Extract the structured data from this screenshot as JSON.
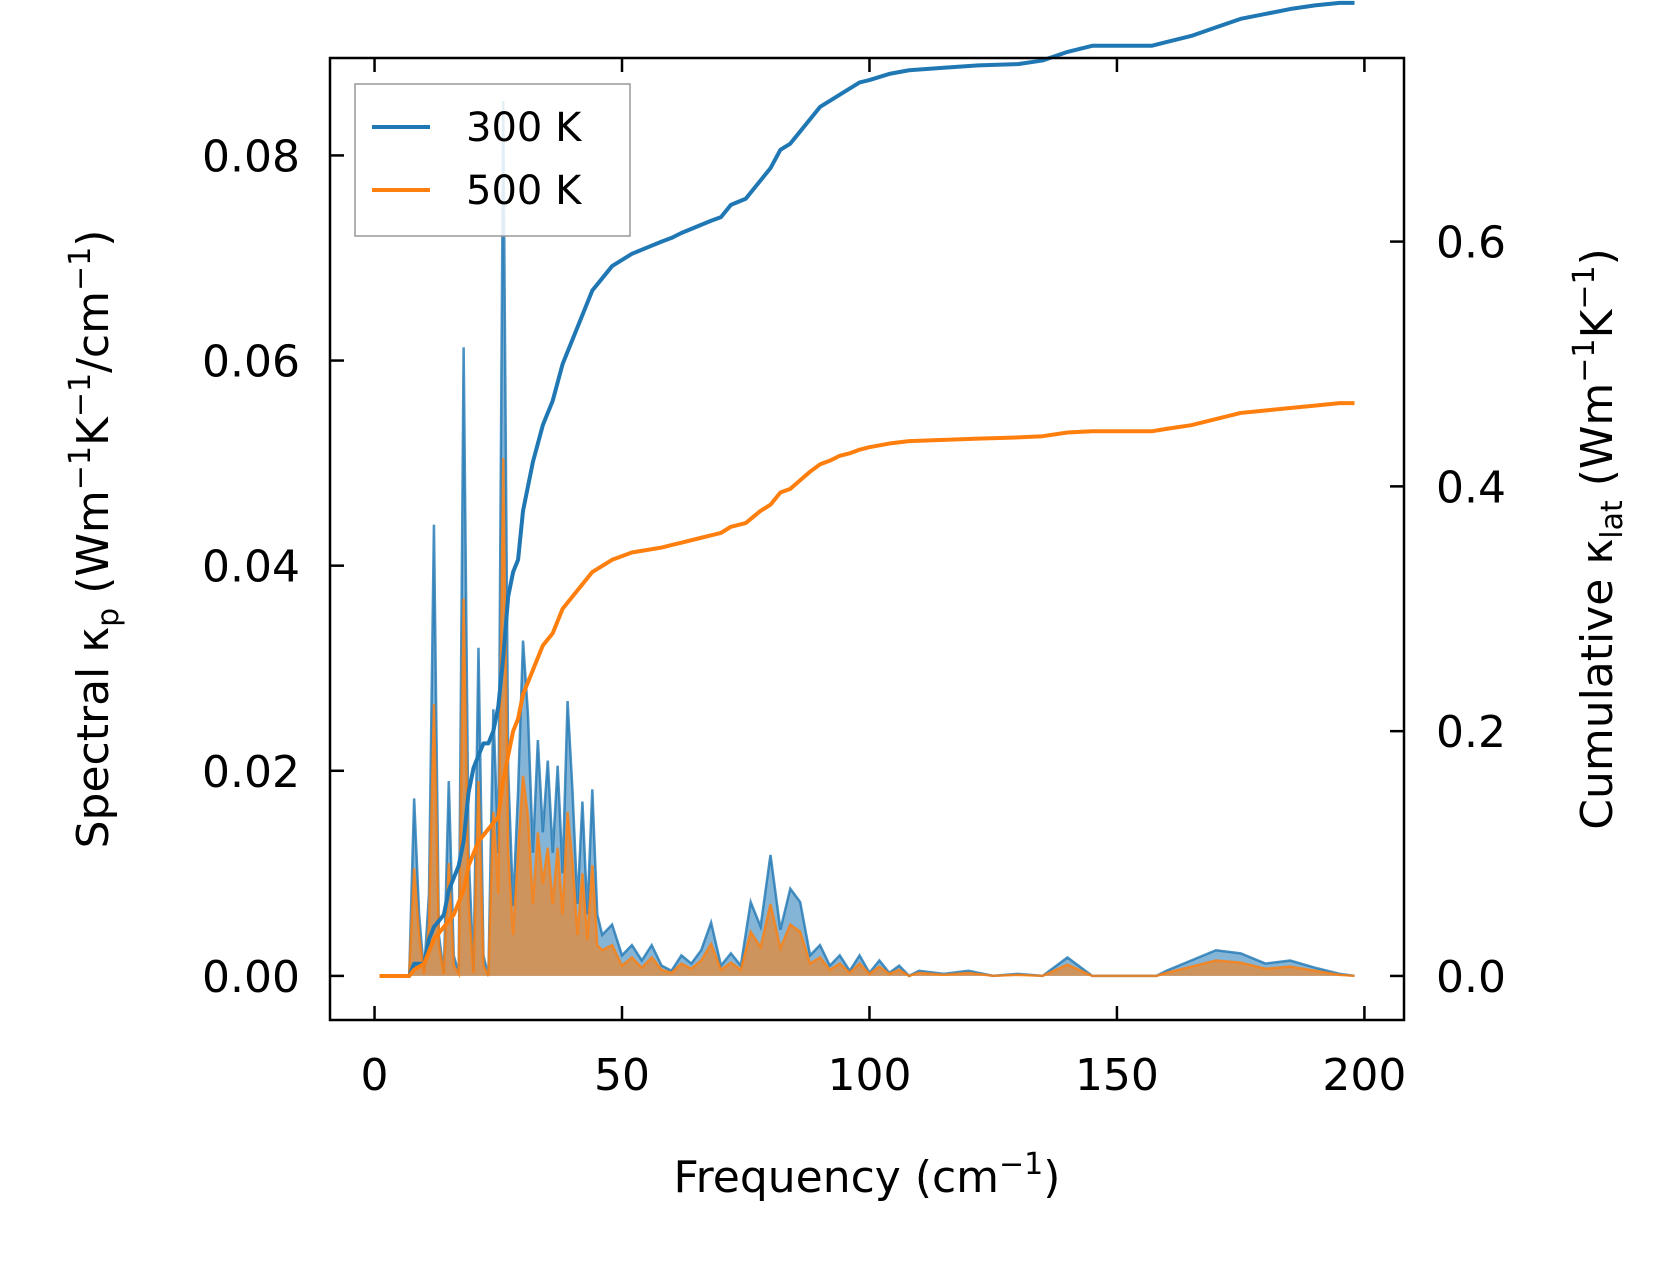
{
  "chart_data": {
    "type": "line",
    "title": "",
    "xlabel": {
      "text": "Frequency (cm",
      "sup": "−1",
      "tail": ")"
    },
    "ylabel_left": {
      "base": "Spectral κ",
      "sub": "p",
      "mid": " (Wm",
      "sup1": "−1",
      "k": "K",
      "sup2": "−1",
      "slash": "/cm",
      "sup3": "−1",
      "tail": ")"
    },
    "ylabel_right": {
      "base": "Cumulative κ",
      "sub": "lat",
      "mid": " (Wm",
      "sup1": "−1",
      "k": "K",
      "sup2": "−1",
      "tail": ")"
    },
    "xlim": [
      -9,
      208
    ],
    "ylim_left": [
      -0.0043,
      0.0895
    ],
    "ylim_right": [
      -0.036,
      0.75
    ],
    "xticks": [
      0,
      50,
      100,
      150,
      200
    ],
    "xtick_labels": [
      "0",
      "50",
      "100",
      "150",
      "200"
    ],
    "yticks_left": [
      0.0,
      0.02,
      0.04,
      0.06,
      0.08
    ],
    "ytick_labels_left": [
      "0.00",
      "0.02",
      "0.04",
      "0.06",
      "0.08"
    ],
    "yticks_right": [
      0.0,
      0.2,
      0.4,
      0.6
    ],
    "ytick_labels_right": [
      "0.0",
      "0.2",
      "0.4",
      "0.6"
    ],
    "grid": false,
    "legend_position": "top-left",
    "series": [
      {
        "name": "300 K",
        "color": "#1f77b4",
        "axis": "right",
        "kind": "cumulative",
        "x": [
          1,
          6,
          7,
          8,
          10,
          11,
          12,
          14,
          15,
          16,
          17,
          18,
          19,
          20,
          21,
          22,
          23,
          24,
          25,
          26,
          27,
          28,
          29,
          30,
          32,
          34,
          36,
          38,
          40,
          41,
          42,
          43,
          44,
          46,
          48,
          50,
          52,
          55,
          58,
          60,
          62,
          65,
          68,
          70,
          72,
          75,
          78,
          80,
          82,
          84,
          86,
          88,
          90,
          92,
          94,
          96,
          98,
          100,
          104,
          108,
          115,
          122,
          130,
          135,
          140,
          145,
          150,
          157,
          160,
          165,
          170,
          175,
          180,
          185,
          190,
          195,
          198
        ],
        "y": [
          0.0,
          0.0,
          0.0,
          0.01,
          0.01,
          0.03,
          0.04,
          0.05,
          0.07,
          0.08,
          0.09,
          0.11,
          0.15,
          0.17,
          0.18,
          0.19,
          0.19,
          0.2,
          0.22,
          0.26,
          0.31,
          0.33,
          0.34,
          0.38,
          0.42,
          0.45,
          0.47,
          0.5,
          0.52,
          0.53,
          0.54,
          0.55,
          0.56,
          0.57,
          0.58,
          0.585,
          0.59,
          0.595,
          0.6,
          0.603,
          0.607,
          0.612,
          0.617,
          0.62,
          0.63,
          0.635,
          0.65,
          0.66,
          0.675,
          0.68,
          0.69,
          0.7,
          0.71,
          0.715,
          0.72,
          0.725,
          0.73,
          0.732,
          0.737,
          0.74,
          0.742,
          0.744,
          0.745,
          0.748,
          0.755,
          0.76,
          0.76,
          0.76,
          0.763,
          0.768,
          0.775,
          0.782,
          0.786,
          0.79,
          0.793,
          0.795,
          0.795
        ]
      },
      {
        "name": "500 K",
        "color": "#ff7f0e",
        "axis": "right",
        "kind": "cumulative",
        "x": [
          1,
          6,
          7,
          8,
          10,
          11,
          12,
          14,
          15,
          16,
          17,
          18,
          19,
          20,
          21,
          22,
          23,
          24,
          25,
          26,
          27,
          28,
          29,
          30,
          32,
          34,
          36,
          38,
          40,
          41,
          42,
          43,
          44,
          46,
          48,
          50,
          52,
          55,
          58,
          60,
          62,
          65,
          68,
          70,
          72,
          75,
          78,
          80,
          82,
          84,
          86,
          88,
          90,
          92,
          94,
          96,
          98,
          100,
          104,
          108,
          115,
          122,
          130,
          135,
          140,
          145,
          150,
          157,
          160,
          165,
          170,
          175,
          180,
          185,
          190,
          195,
          198
        ],
        "y": [
          0.0,
          0.0,
          0.0,
          0.005,
          0.01,
          0.02,
          0.03,
          0.04,
          0.045,
          0.05,
          0.06,
          0.07,
          0.09,
          0.1,
          0.11,
          0.115,
          0.12,
          0.125,
          0.13,
          0.16,
          0.18,
          0.2,
          0.21,
          0.23,
          0.25,
          0.27,
          0.28,
          0.3,
          0.31,
          0.315,
          0.32,
          0.325,
          0.33,
          0.335,
          0.34,
          0.343,
          0.346,
          0.348,
          0.35,
          0.352,
          0.354,
          0.357,
          0.36,
          0.362,
          0.367,
          0.37,
          0.38,
          0.385,
          0.395,
          0.398,
          0.405,
          0.412,
          0.418,
          0.421,
          0.425,
          0.427,
          0.43,
          0.432,
          0.435,
          0.437,
          0.438,
          0.439,
          0.44,
          0.441,
          0.444,
          0.445,
          0.445,
          0.445,
          0.447,
          0.45,
          0.455,
          0.46,
          0.462,
          0.464,
          0.466,
          0.468,
          0.468
        ]
      },
      {
        "name": "",
        "color": "#1f77b4",
        "axis": "left",
        "kind": "spectral",
        "x": [
          1,
          5,
          6,
          7,
          8,
          9,
          10,
          11,
          12,
          13,
          14,
          15,
          16,
          17,
          18,
          19,
          20,
          21,
          22,
          23,
          24,
          25,
          26,
          27,
          28,
          29,
          30,
          31,
          32,
          33,
          34,
          35,
          36,
          37,
          38,
          39,
          40,
          41,
          42,
          43,
          44,
          45,
          46,
          48,
          50,
          52,
          54,
          56,
          58,
          60,
          62,
          64,
          66,
          68,
          70,
          72,
          74,
          76,
          78,
          80,
          82,
          84,
          86,
          88,
          90,
          92,
          94,
          96,
          98,
          100,
          102,
          104,
          106,
          108,
          110,
          115,
          120,
          125,
          130,
          135,
          140,
          145,
          150,
          155,
          158,
          160,
          165,
          170,
          175,
          180,
          185,
          190,
          195,
          198
        ],
        "y": [
          0.0,
          0.0,
          0.0,
          0.0,
          0.0173,
          0.006,
          0.0003,
          0.008,
          0.044,
          0.004,
          0.0003,
          0.019,
          0.002,
          0.0003,
          0.0613,
          0.012,
          0.0005,
          0.032,
          0.002,
          0.0,
          0.026,
          0.012,
          0.0853,
          0.02,
          0.0068,
          0.018,
          0.0327,
          0.0255,
          0.012,
          0.023,
          0.014,
          0.021,
          0.012,
          0.0205,
          0.01,
          0.0268,
          0.018,
          0.007,
          0.017,
          0.006,
          0.0182,
          0.006,
          0.004,
          0.005,
          0.002,
          0.003,
          0.0015,
          0.003,
          0.001,
          0.0005,
          0.002,
          0.0012,
          0.0025,
          0.0052,
          0.001,
          0.0022,
          0.001,
          0.0072,
          0.0048,
          0.0118,
          0.0045,
          0.0085,
          0.0072,
          0.002,
          0.003,
          0.001,
          0.002,
          0.0005,
          0.002,
          0.0003,
          0.0015,
          0.0003,
          0.001,
          0.0,
          0.0005,
          0.0002,
          0.0005,
          0.0,
          0.0002,
          0.0,
          0.0018,
          0.0,
          0.0,
          0.0,
          0.0,
          0.0005,
          0.0015,
          0.0025,
          0.0022,
          0.0012,
          0.0015,
          0.0008,
          0.0002,
          0.0
        ]
      },
      {
        "name": "",
        "color": "#ff7f0e",
        "axis": "left",
        "kind": "spectral",
        "x": [
          1,
          5,
          6,
          7,
          8,
          9,
          10,
          11,
          12,
          13,
          14,
          15,
          16,
          17,
          18,
          19,
          20,
          21,
          22,
          23,
          24,
          25,
          26,
          27,
          28,
          29,
          30,
          31,
          32,
          33,
          34,
          35,
          36,
          37,
          38,
          39,
          40,
          41,
          42,
          43,
          44,
          45,
          46,
          48,
          50,
          52,
          54,
          56,
          58,
          60,
          62,
          64,
          66,
          68,
          70,
          72,
          74,
          76,
          78,
          80,
          82,
          84,
          86,
          88,
          90,
          92,
          94,
          96,
          98,
          100,
          102,
          104,
          106,
          108,
          110,
          115,
          120,
          125,
          130,
          135,
          140,
          145,
          150,
          155,
          158,
          160,
          165,
          170,
          175,
          180,
          185,
          190,
          195,
          198
        ],
        "y": [
          0.0,
          0.0,
          0.0,
          0.0,
          0.0105,
          0.004,
          0.0002,
          0.005,
          0.0265,
          0.003,
          0.0002,
          0.011,
          0.001,
          0.0002,
          0.0368,
          0.007,
          0.0003,
          0.019,
          0.001,
          0.0,
          0.016,
          0.008,
          0.0505,
          0.012,
          0.004,
          0.012,
          0.0195,
          0.0155,
          0.007,
          0.014,
          0.009,
          0.0125,
          0.007,
          0.0125,
          0.006,
          0.016,
          0.011,
          0.004,
          0.01,
          0.0035,
          0.0108,
          0.003,
          0.0025,
          0.003,
          0.001,
          0.0018,
          0.0008,
          0.0018,
          0.0006,
          0.0003,
          0.0012,
          0.0007,
          0.0015,
          0.0031,
          0.0006,
          0.0013,
          0.0006,
          0.0043,
          0.0028,
          0.007,
          0.0027,
          0.005,
          0.0043,
          0.0012,
          0.0018,
          0.0006,
          0.0012,
          0.0003,
          0.0012,
          0.0002,
          0.0009,
          0.0002,
          0.0006,
          0.0,
          0.0003,
          0.0001,
          0.0003,
          0.0,
          0.0001,
          0.0,
          0.0011,
          0.0,
          0.0,
          0.0,
          0.0,
          0.0003,
          0.0009,
          0.0015,
          0.0013,
          0.0007,
          0.0009,
          0.0005,
          0.0001,
          0.0
        ]
      }
    ]
  }
}
